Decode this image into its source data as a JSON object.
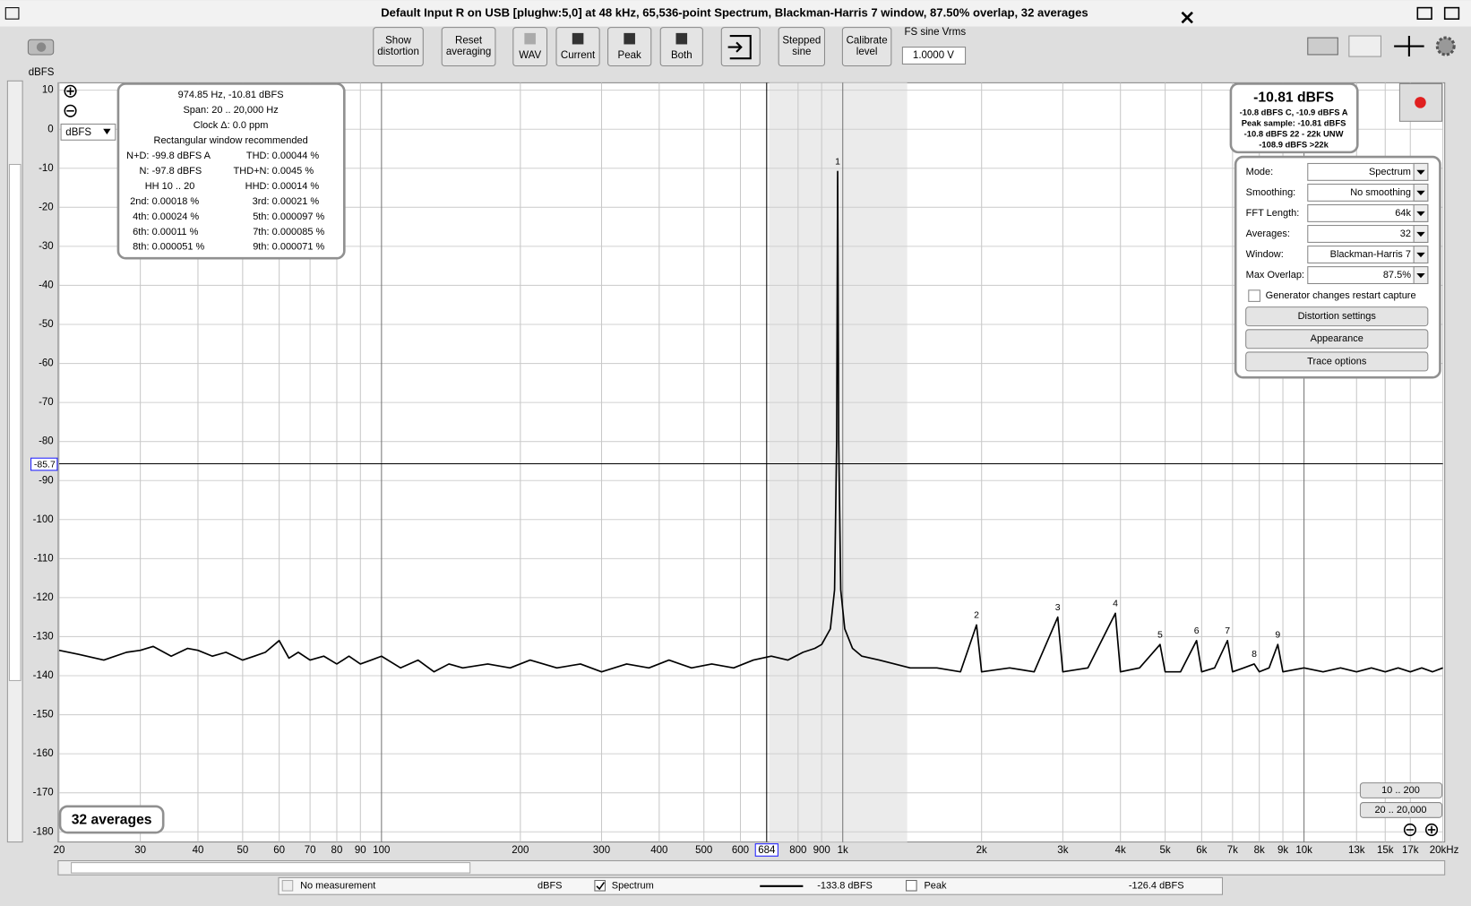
{
  "window": {
    "title": "Default Input R on USB [plughw:5,0] at 48 kHz, 65,536-point Spectrum, Blackman-Harris 7 window, 87.50% overlap, 32 averages"
  },
  "toolbar": {
    "buttons": [
      [
        "Show",
        "distortion"
      ],
      [
        "Reset",
        "averaging"
      ],
      [
        "WAV"
      ],
      [
        "Current"
      ],
      [
        "Peak"
      ],
      [
        "Both"
      ],
      [
        "Stepped",
        "sine"
      ],
      [
        "Calibrate",
        "level"
      ]
    ]
  },
  "fs_sine": {
    "label": "FS sine Vrms",
    "value": "1.0000 V"
  },
  "chart_data": {
    "type": "line",
    "y_label": "dBFS",
    "unit_selector": "dBFS",
    "x_log": true,
    "grid": true,
    "xlim": [
      20,
      20000
    ],
    "ylim": [
      -182.6,
      11.9
    ],
    "xticks": [
      20,
      30,
      40,
      50,
      60,
      70,
      80,
      90,
      100,
      200,
      300,
      400,
      500,
      600,
      800,
      900,
      {
        "value": 1000,
        "label": "1k"
      },
      {
        "value": 2000,
        "label": "2k"
      },
      {
        "value": 3000,
        "label": "3k"
      },
      {
        "value": 4000,
        "label": "4k"
      },
      {
        "value": 5000,
        "label": "5k"
      },
      {
        "value": 6000,
        "label": "6k"
      },
      {
        "value": 7000,
        "label": "7k"
      },
      {
        "value": 8000,
        "label": "8k"
      },
      {
        "value": 9000,
        "label": "9k"
      },
      {
        "value": 10000,
        "label": "10k"
      },
      {
        "value": 13000,
        "label": "13k"
      },
      {
        "value": 15000,
        "label": "15k"
      },
      {
        "value": 17000,
        "label": "17k"
      },
      {
        "value": 20000,
        "label": "20kHz"
      }
    ],
    "yticks": [
      10,
      0,
      -10,
      -20,
      -30,
      -40,
      -50,
      -60,
      -70,
      -80,
      -90,
      -100,
      -110,
      -120,
      -130,
      -140,
      -150,
      -160,
      -170,
      -180
    ],
    "cursor": {
      "x": 684,
      "y": -85.7
    },
    "x": [
      20,
      22,
      25,
      28,
      30,
      32,
      35,
      38,
      40,
      43,
      46,
      50,
      53,
      56,
      60,
      63,
      66,
      70,
      75,
      80,
      85,
      90,
      95,
      100,
      110,
      120,
      130,
      140,
      150,
      170,
      190,
      210,
      240,
      270,
      300,
      340,
      380,
      420,
      470,
      520,
      580,
      640,
      700,
      760,
      820,
      870,
      900,
      940,
      960,
      970,
      974.85,
      980,
      990,
      1010,
      1050,
      1100,
      1200,
      1400,
      1600,
      1800,
      1950,
      2000,
      2300,
      2600,
      2925,
      3000,
      3400,
      3900,
      4000,
      4400,
      4874,
      5000,
      5400,
      5849,
      6000,
      6400,
      6824,
      7000,
      7400,
      7799,
      8000,
      8400,
      8774,
      9000,
      10000,
      11000,
      12000,
      13000,
      14000,
      15000,
      16000,
      17000,
      18000,
      19000,
      20000
    ],
    "series": [
      {
        "name": "Spectrum",
        "color": "#000000",
        "values": [
          -133.5,
          -134.5,
          -136,
          -134,
          -133.5,
          -132.5,
          -135,
          -133,
          -133.5,
          -135,
          -134,
          -136,
          -135,
          -134,
          -131,
          -135.5,
          -134,
          -136,
          -135,
          -137,
          -135,
          -137,
          -136,
          -135,
          -138,
          -136,
          -139,
          -137,
          -138,
          -137,
          -138,
          -136,
          -138,
          -137,
          -139,
          -137,
          -138,
          -136,
          -138,
          -137,
          -138,
          -136,
          -135,
          -136,
          -134,
          -133,
          -132,
          -128,
          -118,
          -80,
          -10.81,
          -80,
          -118,
          -128,
          -133,
          -135,
          -136,
          -138,
          -138,
          -139,
          -127,
          -139,
          -138,
          -139,
          -125,
          -139,
          -138,
          -124,
          -139,
          -138,
          -132,
          -139,
          -139,
          -131,
          -139,
          -138,
          -131,
          -139,
          -138,
          -137,
          -139,
          -138,
          -132,
          -139,
          -138,
          -139,
          -138,
          -139,
          -138,
          -139,
          -138,
          -139,
          -138,
          -139,
          -138
        ]
      }
    ],
    "annotations": [
      {
        "text": "1",
        "x": 974.85,
        "y": -10.81
      },
      {
        "text": "2",
        "x": 1950,
        "y": -127
      },
      {
        "text": "3",
        "x": 2925,
        "y": -125
      },
      {
        "text": "4",
        "x": 3900,
        "y": -124
      },
      {
        "text": "5",
        "x": 4874,
        "y": -132
      },
      {
        "text": "6",
        "x": 5849,
        "y": -131
      },
      {
        "text": "7",
        "x": 6824,
        "y": -131
      },
      {
        "text": "8",
        "x": 7799,
        "y": -137
      },
      {
        "text": "9",
        "x": 8774,
        "y": -132
      }
    ]
  },
  "info_panel": {
    "lines": [
      "974.85 Hz, -10.81 dBFS",
      "Span: 20 .. 20,000 Hz",
      "Clock Δ: 0.0 ppm",
      "Rectangular window recommended"
    ],
    "rows": [
      [
        "N+D:",
        "-99.8 dBFS A",
        "THD:",
        "0.00044 %"
      ],
      [
        "N:",
        "-97.8 dBFS",
        "THD+N:",
        "0.0045 %"
      ],
      [
        "HH 10 .. 20",
        "HHD:",
        "0.00014 %"
      ],
      [
        "2nd:",
        "0.00018 %",
        "3rd:",
        "0.00021 %"
      ],
      [
        "4th:",
        "0.00024 %",
        "5th:",
        "0.000097 %"
      ],
      [
        "6th:",
        "0.00011 %",
        "7th:",
        "0.000085 %"
      ],
      [
        "8th:",
        "0.000051 %",
        "9th:",
        "0.000071 %"
      ]
    ]
  },
  "level_panel": {
    "main": "-10.81 dBFS",
    "lines": [
      "-10.8 dBFS C, -10.9 dBFS A",
      "Peak sample: -10.81 dBFS",
      "-10.8 dBFS 22 - 22k UNW",
      "-108.9 dBFS >22k"
    ]
  },
  "settings": {
    "rows": [
      {
        "label": "Mode:",
        "value": "Spectrum"
      },
      {
        "label": "Smoothing:",
        "value": "No  smoothing"
      },
      {
        "label": "FFT Length:",
        "value": "64k"
      },
      {
        "label": "Averages:",
        "value": "32"
      },
      {
        "label": "Window:",
        "value": "Blackman-Harris 7"
      },
      {
        "label": "Max Overlap:",
        "value": "87.5%"
      }
    ],
    "checkbox": "Generator changes restart capture",
    "buttons": [
      "Distortion settings",
      "Appearance",
      "Trace options"
    ]
  },
  "averages_badge": "32 averages",
  "zoom_buttons": [
    "10 .. 200",
    "20 .. 20,000"
  ],
  "legend": {
    "no_measurement": {
      "name": "No measurement",
      "unit": "dBFS"
    },
    "spectrum_value": "-133.8 dBFS",
    "peak": {
      "name": "Peak",
      "value": "-126.4 dBFS",
      "color": "#c00000"
    }
  }
}
